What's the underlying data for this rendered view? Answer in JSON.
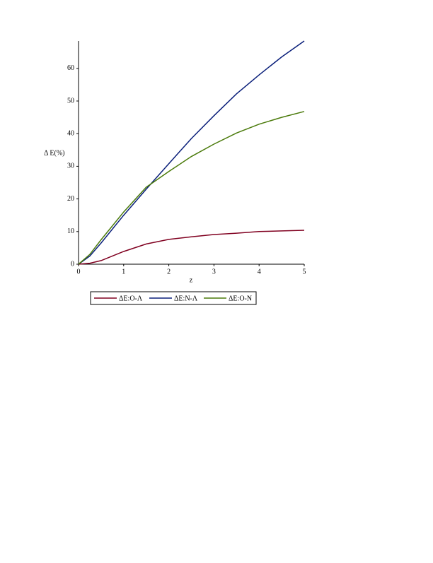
{
  "chart_data": {
    "type": "line",
    "x_label": "z",
    "y_label": "Δ E(%)",
    "x": [
      0,
      0.25,
      0.5,
      1,
      1.5,
      2,
      2.5,
      3,
      3.5,
      4,
      4.5,
      5
    ],
    "series": [
      {
        "name": "ΔE:O-Λ",
        "color": "#800020",
        "values": [
          0,
          0.3,
          1.1,
          3.9,
          6.2,
          7.6,
          8.4,
          9.1,
          9.5,
          10.0,
          10.2,
          10.4
        ]
      },
      {
        "name": "ΔE:N-Λ",
        "color": "#0a1f7a",
        "values": [
          0,
          2.5,
          6.5,
          15.0,
          23.0,
          30.8,
          38.5,
          45.5,
          52.2,
          58.0,
          63.5,
          68.4
        ]
      },
      {
        "name": "ΔE:O-N",
        "color": "#4a7a0a",
        "values": [
          0,
          3.0,
          7.5,
          16.0,
          23.6,
          28.4,
          33.0,
          36.8,
          40.2,
          42.9,
          45.0,
          46.8
        ]
      }
    ],
    "xlim": [
      0,
      5
    ],
    "ylim": [
      0,
      68.4
    ],
    "xticks": [
      0,
      1,
      2,
      3,
      4,
      5
    ],
    "yticks": [
      0,
      10,
      20,
      30,
      40,
      50,
      60
    ],
    "legend": "bottom"
  }
}
